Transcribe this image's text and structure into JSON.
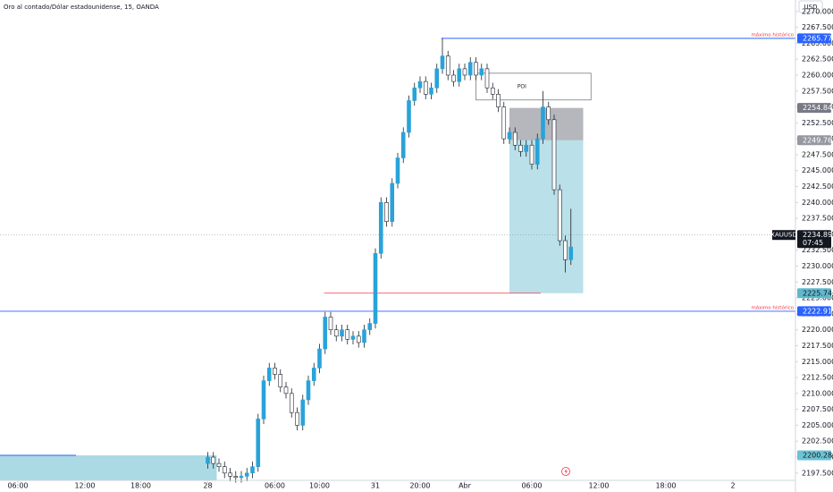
{
  "chart_data": {
    "type": "candlestick",
    "title": "Oro al contado/Dólar estadounidense, 15, OANDA",
    "currency": "USD",
    "up_color": "#29a3d9",
    "down_color": "#ffffff",
    "border_color": "#1e222d",
    "grid": false,
    "xlim": [
      -1.6,
      69.6
    ],
    "ylim": [
      2196.35,
      2271.8
    ],
    "xticks": [
      {
        "value": 0,
        "label": "06:00"
      },
      {
        "value": 6,
        "label": "12:00"
      },
      {
        "value": 11,
        "label": "18:00"
      },
      {
        "value": 17,
        "label": "28"
      },
      {
        "value": 23,
        "label": "06:00"
      },
      {
        "value": 27,
        "label": "10:00"
      },
      {
        "value": 32,
        "label": "31"
      },
      {
        "value": 36,
        "label": "20:00"
      },
      {
        "value": 40,
        "label": "Abr"
      },
      {
        "value": 46,
        "label": "06:00"
      },
      {
        "value": 52,
        "label": "12:00"
      },
      {
        "value": 58,
        "label": "18:00"
      },
      {
        "value": 64,
        "label": "2"
      }
    ],
    "yticks": [
      {
        "value": 2197.5,
        "label": "2197.500"
      },
      {
        "value": 2200,
        "label": "2200.000"
      },
      {
        "value": 2202.5,
        "label": "2202.500"
      },
      {
        "value": 2205,
        "label": "2205.000"
      },
      {
        "value": 2207.5,
        "label": "2207.500"
      },
      {
        "value": 2210,
        "label": "2210.000"
      },
      {
        "value": 2212.5,
        "label": "2212.500"
      },
      {
        "value": 2215,
        "label": "2215.000"
      },
      {
        "value": 2217.5,
        "label": "2217.500"
      },
      {
        "value": 2220,
        "label": "2220.000"
      },
      {
        "value": 2222.5,
        "label": "2222.500"
      },
      {
        "value": 2225,
        "label": "2225.000"
      },
      {
        "value": 2227.5,
        "label": "2227.500"
      },
      {
        "value": 2230,
        "label": "2230.000"
      },
      {
        "value": 2232.5,
        "label": "2232.500"
      },
      {
        "value": 2235,
        "label": "2235.000"
      },
      {
        "value": 2237.5,
        "label": "2237.500"
      },
      {
        "value": 2240,
        "label": "2240.000"
      },
      {
        "value": 2242.5,
        "label": "2242.500"
      },
      {
        "value": 2245,
        "label": "2245.000"
      },
      {
        "value": 2247.5,
        "label": "2247.500"
      },
      {
        "value": 2250,
        "label": "2250.000"
      },
      {
        "value": 2252.5,
        "label": "2252.500"
      },
      {
        "value": 2255,
        "label": "2255.000"
      },
      {
        "value": 2257.5,
        "label": "2257.500"
      },
      {
        "value": 2260,
        "label": "2260.000"
      },
      {
        "value": 2262.5,
        "label": "2262.500"
      },
      {
        "value": 2265,
        "label": "2265.000"
      },
      {
        "value": 2267.5,
        "label": "2267.500"
      },
      {
        "value": 2270,
        "label": "2270.000"
      }
    ],
    "x": [
      17,
      17.5,
      18,
      18.5,
      19,
      19.5,
      20,
      20.5,
      21,
      21.5,
      22,
      22.5,
      23,
      23.5,
      24,
      24.5,
      25,
      25.5,
      26,
      26.5,
      27,
      27.5,
      28,
      28.5,
      29,
      29.5,
      30,
      30.5,
      31,
      31.5,
      32,
      32.5,
      33,
      33.5,
      34,
      34.5,
      35,
      35.5,
      36,
      36.5,
      37,
      37.5,
      38,
      38.5,
      39,
      39.5,
      40,
      40.5,
      41,
      41.5,
      42,
      42.5,
      43,
      43.5,
      44,
      44.5,
      45,
      45.5,
      46,
      46.5,
      47,
      47.5,
      48,
      48.5,
      49,
      49.5
    ],
    "open": [
      2199,
      2200,
      2199,
      2198.5,
      2197.5,
      2197,
      2196.8,
      2197,
      2197.5,
      2198.5,
      2206,
      2212,
      2214,
      2213,
      2211,
      2210,
      2207,
      2205,
      2209,
      2212,
      2214,
      2217,
      2222,
      2220,
      2219,
      2220,
      2218.5,
      2219,
      2218,
      2220,
      2221,
      2232,
      2240,
      2237,
      2243,
      2247,
      2251,
      2256,
      2258,
      2259,
      2257,
      2258,
      2261,
      2263,
      2260,
      2259,
      2261,
      2260,
      2262,
      2260,
      2261,
      2258,
      2257,
      2255,
      2250,
      2251,
      2249,
      2248,
      2249,
      2246,
      2250,
      2255,
      2253,
      2242,
      2234,
      2231
    ],
    "high": [
      2200.8,
      2200.8,
      2199.8,
      2199.3,
      2198.3,
      2197.8,
      2197.8,
      2198.3,
      2199.3,
      2206.8,
      2212.8,
      2214.8,
      2214.8,
      2213.8,
      2211.8,
      2210.8,
      2207.8,
      2209.8,
      2212.8,
      2214.8,
      2217.8,
      2222.8,
      2222.8,
      2220.8,
      2220.8,
      2220.8,
      2219.8,
      2219.8,
      2220.8,
      2221.8,
      2232.8,
      2240.8,
      2240.8,
      2243.8,
      2247.8,
      2251.8,
      2256.8,
      2258.8,
      2259.8,
      2259.8,
      2258.8,
      2261.8,
      2265.8,
      2263.8,
      2260.8,
      2261.8,
      2261.8,
      2262.8,
      2262.8,
      2261.8,
      2261.8,
      2258.8,
      2257.8,
      2255.8,
      2251.8,
      2251.8,
      2249.8,
      2249.8,
      2249.8,
      2250.8,
      2257.5,
      2255.8,
      2253.8,
      2242.8,
      2234.8,
      2239
    ],
    "low": [
      2198.2,
      2198.2,
      2197.7,
      2196.7,
      2196.2,
      2196,
      2196,
      2196.2,
      2196.7,
      2197.7,
      2205.2,
      2211.2,
      2212.2,
      2210.2,
      2209.2,
      2206.2,
      2204.2,
      2204.2,
      2208.2,
      2211.2,
      2213.2,
      2216.2,
      2219.2,
      2218.2,
      2218.2,
      2217.7,
      2217.7,
      2217.2,
      2217.2,
      2219.2,
      2220.2,
      2231.2,
      2236.2,
      2236.2,
      2242.2,
      2246.2,
      2250.2,
      2255.2,
      2257.2,
      2256.2,
      2256.2,
      2257.2,
      2260.2,
      2259.2,
      2258.2,
      2258.2,
      2259.2,
      2259.2,
      2259.2,
      2259.2,
      2257.2,
      2256.2,
      2254.2,
      2249.2,
      2249.2,
      2248.2,
      2247.2,
      2247.2,
      2245.2,
      2245.2,
      2249.2,
      2252.2,
      2241.2,
      2233.2,
      2229,
      2230.2
    ],
    "close": [
      2200,
      2199,
      2198.5,
      2197.5,
      2197,
      2196.8,
      2197,
      2197.5,
      2198.5,
      2206,
      2212,
      2214,
      2213,
      2211,
      2210,
      2207,
      2205,
      2209,
      2212,
      2214,
      2217,
      2222,
      2220,
      2219,
      2220,
      2218.5,
      2219,
      2218,
      2220,
      2221,
      2232,
      2240,
      2237,
      2243,
      2247,
      2251,
      2256,
      2258,
      2259,
      2257,
      2258,
      2261,
      2263,
      2260,
      2259,
      2261,
      2260,
      2262,
      2260,
      2261,
      2258,
      2257,
      2255,
      2250,
      2251,
      2249,
      2248,
      2249,
      2246,
      2250,
      2255,
      2253,
      2242,
      2234,
      2231,
      2233
    ],
    "levels": [
      {
        "price": 2265.775,
        "note": "máximo histórico",
        "from": 37.9,
        "color": "#2962ff"
      },
      {
        "price": 2222.915,
        "note": "máximo histórico",
        "from": -1.6,
        "color": "#2962ff"
      }
    ],
    "poi": {
      "label": "POI",
      "x": [
        41,
        51.3
      ],
      "price": [
        2256.1,
        2260.3
      ]
    },
    "position": {
      "x": [
        44,
        50.6
      ],
      "stop": 2254.846,
      "entry": 2249.769,
      "target": 2225.746,
      "target_line_x": [
        27.4,
        46.8
      ]
    },
    "zone": {
      "x": [
        -1.6,
        17.8
      ],
      "top": 2200.282
    },
    "current": {
      "symbol": "XAUUSD",
      "price": 2234.89,
      "price_label": "2234.890",
      "countdown": "07:45"
    }
  }
}
